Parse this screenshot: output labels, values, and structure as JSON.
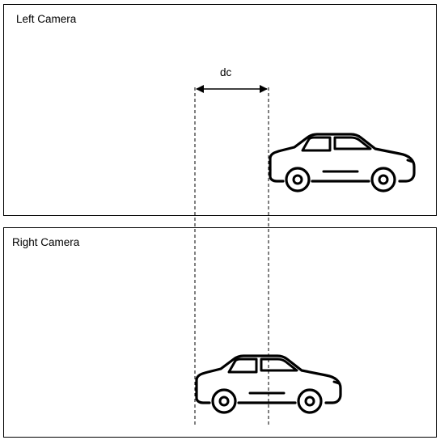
{
  "panels": {
    "left": {
      "label": "Left Camera"
    },
    "right": {
      "label": "Right Camera"
    }
  },
  "annotation": {
    "label": "dc"
  },
  "icons": {
    "vehicle": "car-icon"
  },
  "colors": {
    "stroke": "#000000",
    "background": "#ffffff"
  }
}
